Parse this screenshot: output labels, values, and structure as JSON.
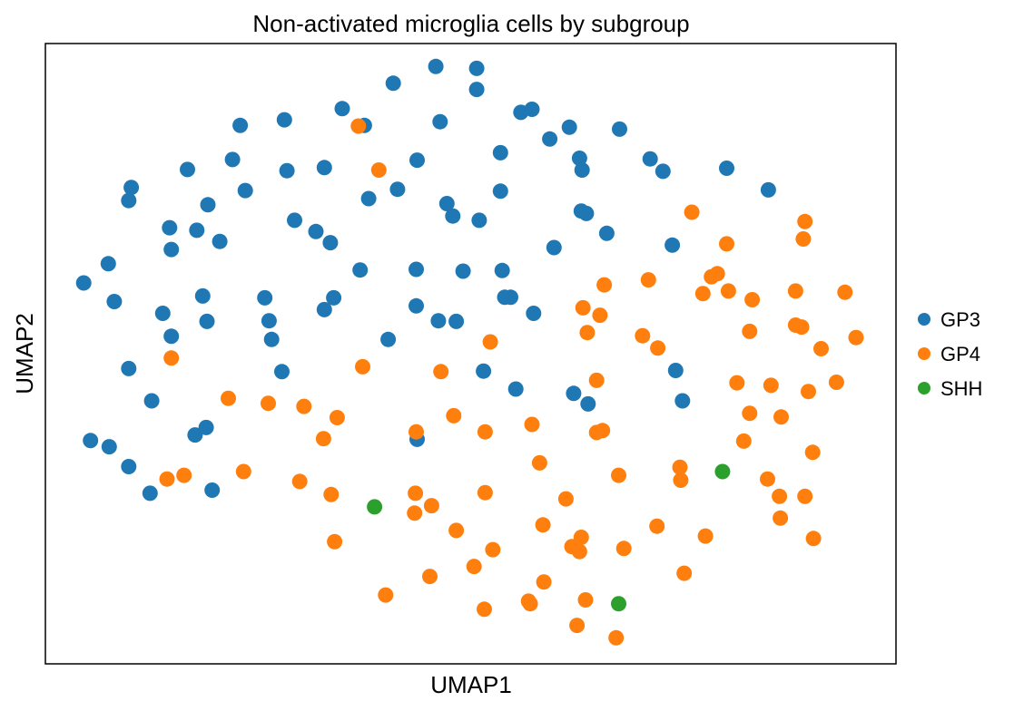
{
  "chart_data": {
    "type": "scatter",
    "title": "Non-activated microglia cells by subgroup",
    "xlabel": "UMAP1",
    "ylabel": "UMAP2",
    "xlim": [
      0,
      100
    ],
    "ylim": [
      0,
      100
    ],
    "grid": false,
    "ticks": false,
    "legend_position": "right",
    "series": [
      {
        "name": "GP3",
        "color": "#1f77b4",
        "points": [
          [
            4.5,
            61.4
          ],
          [
            7.4,
            64.5
          ],
          [
            8.1,
            58.4
          ],
          [
            9.8,
            74.7
          ],
          [
            10.1,
            76.8
          ],
          [
            9.8,
            47.6
          ],
          [
            5.3,
            36.0
          ],
          [
            7.5,
            35.0
          ],
          [
            9.8,
            31.8
          ],
          [
            12.5,
            42.4
          ],
          [
            12.3,
            27.5
          ],
          [
            13.8,
            56.5
          ],
          [
            14.8,
            52.8
          ],
          [
            14.6,
            70.3
          ],
          [
            14.8,
            66.8
          ],
          [
            16.7,
            79.7
          ],
          [
            17.8,
            69.9
          ],
          [
            18.5,
            59.3
          ],
          [
            17.6,
            36.9
          ],
          [
            18.9,
            38.1
          ],
          [
            19.0,
            55.2
          ],
          [
            19.1,
            74.0
          ],
          [
            19.6,
            28.0
          ],
          [
            20.5,
            68.1
          ],
          [
            22.0,
            81.3
          ],
          [
            22.9,
            86.8
          ],
          [
            23.5,
            76.3
          ],
          [
            25.8,
            59.0
          ],
          [
            26.3,
            55.3
          ],
          [
            26.6,
            52.3
          ],
          [
            27.8,
            47.1
          ],
          [
            28.1,
            87.7
          ],
          [
            28.4,
            79.5
          ],
          [
            29.3,
            71.5
          ],
          [
            31.8,
            69.7
          ],
          [
            32.8,
            80.0
          ],
          [
            33.5,
            67.9
          ],
          [
            32.8,
            57.1
          ],
          [
            33.9,
            59.0
          ],
          [
            34.9,
            89.5
          ],
          [
            37.0,
            63.5
          ],
          [
            37.5,
            86.8
          ],
          [
            38.0,
            75.0
          ],
          [
            40.3,
            52.3
          ],
          [
            40.9,
            93.6
          ],
          [
            41.4,
            76.5
          ],
          [
            43.7,
            81.2
          ],
          [
            43.6,
            63.6
          ],
          [
            43.6,
            57.7
          ],
          [
            43.7,
            36.2
          ],
          [
            45.9,
            96.3
          ],
          [
            46.4,
            87.4
          ],
          [
            47.2,
            74.2
          ],
          [
            46.2,
            55.3
          ],
          [
            47.9,
            72.2
          ],
          [
            49.1,
            63.3
          ],
          [
            48.3,
            55.2
          ],
          [
            50.7,
            96.0
          ],
          [
            50.7,
            92.6
          ],
          [
            51.0,
            71.5
          ],
          [
            51.5,
            47.2
          ],
          [
            53.5,
            82.4
          ],
          [
            53.5,
            76.2
          ],
          [
            53.7,
            63.4
          ],
          [
            54.0,
            59.1
          ],
          [
            54.7,
            59.1
          ],
          [
            55.3,
            44.3
          ],
          [
            55.9,
            88.9
          ],
          [
            57.2,
            89.4
          ],
          [
            57.4,
            56.5
          ],
          [
            59.3,
            84.6
          ],
          [
            59.8,
            67.1
          ],
          [
            61.6,
            86.5
          ],
          [
            62.1,
            43.6
          ],
          [
            62.8,
            81.5
          ],
          [
            63.1,
            79.6
          ],
          [
            63.0,
            73.0
          ],
          [
            63.6,
            72.6
          ],
          [
            63.8,
            41.9
          ],
          [
            66.0,
            69.4
          ],
          [
            67.5,
            86.2
          ],
          [
            71.1,
            81.4
          ],
          [
            72.6,
            79.4
          ],
          [
            73.7,
            67.5
          ],
          [
            74.1,
            47.3
          ],
          [
            74.9,
            42.4
          ],
          [
            80.1,
            79.9
          ],
          [
            85.0,
            76.4
          ]
        ]
      },
      {
        "name": "GP4",
        "color": "#ff7f0e",
        "points": [
          [
            36.8,
            86.7
          ],
          [
            39.2,
            79.6
          ],
          [
            14.8,
            49.3
          ],
          [
            21.5,
            42.8
          ],
          [
            26.2,
            42.0
          ],
          [
            30.4,
            41.5
          ],
          [
            34.3,
            39.7
          ],
          [
            32.7,
            36.3
          ],
          [
            14.3,
            29.8
          ],
          [
            16.3,
            30.4
          ],
          [
            23.3,
            31.0
          ],
          [
            29.9,
            29.4
          ],
          [
            33.6,
            27.3
          ],
          [
            34.0,
            19.7
          ],
          [
            37.3,
            47.9
          ],
          [
            43.6,
            37.4
          ],
          [
            43.5,
            27.5
          ],
          [
            43.4,
            24.3
          ],
          [
            45.4,
            25.5
          ],
          [
            46.5,
            47.1
          ],
          [
            48.0,
            40.0
          ],
          [
            48.3,
            21.5
          ],
          [
            52.3,
            51.9
          ],
          [
            51.7,
            37.4
          ],
          [
            51.7,
            27.6
          ],
          [
            50.4,
            15.7
          ],
          [
            52.6,
            18.4
          ],
          [
            45.2,
            14.1
          ],
          [
            40.0,
            11.1
          ],
          [
            51.6,
            8.8
          ],
          [
            57.2,
            38.6
          ],
          [
            58.1,
            32.4
          ],
          [
            58.5,
            22.4
          ],
          [
            57.0,
            9.7
          ],
          [
            56.8,
            10.1
          ],
          [
            58.6,
            13.2
          ],
          [
            61.2,
            26.6
          ],
          [
            61.9,
            18.9
          ],
          [
            62.8,
            18.1
          ],
          [
            63.0,
            20.4
          ],
          [
            63.5,
            10.3
          ],
          [
            62.5,
            6.2
          ],
          [
            63.7,
            53.4
          ],
          [
            63.2,
            57.4
          ],
          [
            65.2,
            56.2
          ],
          [
            65.7,
            61.1
          ],
          [
            64.8,
            45.7
          ],
          [
            64.8,
            37.3
          ],
          [
            65.5,
            37.6
          ],
          [
            67.4,
            30.4
          ],
          [
            68.0,
            18.6
          ],
          [
            67.1,
            4.2
          ],
          [
            70.2,
            52.9
          ],
          [
            70.9,
            61.9
          ],
          [
            72.0,
            50.9
          ],
          [
            71.9,
            22.2
          ],
          [
            74.6,
            31.7
          ],
          [
            74.7,
            29.6
          ],
          [
            75.1,
            14.6
          ],
          [
            76.0,
            72.8
          ],
          [
            77.3,
            59.7
          ],
          [
            78.3,
            62.4
          ],
          [
            79.0,
            62.9
          ],
          [
            77.6,
            20.6
          ],
          [
            80.1,
            67.7
          ],
          [
            80.3,
            60.1
          ],
          [
            81.3,
            45.3
          ],
          [
            82.1,
            35.9
          ],
          [
            82.8,
            40.4
          ],
          [
            82.8,
            53.6
          ],
          [
            83.1,
            58.7
          ],
          [
            84.9,
            29.8
          ],
          [
            85.3,
            44.9
          ],
          [
            86.3,
            27.0
          ],
          [
            86.5,
            39.8
          ],
          [
            86.4,
            23.5
          ],
          [
            88.2,
            60.1
          ],
          [
            88.2,
            54.6
          ],
          [
            88.9,
            54.3
          ],
          [
            89.3,
            71.3
          ],
          [
            89.1,
            68.5
          ],
          [
            89.3,
            27.0
          ],
          [
            89.7,
            43.9
          ],
          [
            90.2,
            34.1
          ],
          [
            90.3,
            20.2
          ],
          [
            91.2,
            50.8
          ],
          [
            93.0,
            45.4
          ],
          [
            94.0,
            59.9
          ],
          [
            95.3,
            52.6
          ]
        ]
      },
      {
        "name": "SHH",
        "color": "#2ca02c",
        "points": [
          [
            38.7,
            25.3
          ],
          [
            79.6,
            31.0
          ],
          [
            67.4,
            9.7
          ]
        ]
      }
    ]
  }
}
